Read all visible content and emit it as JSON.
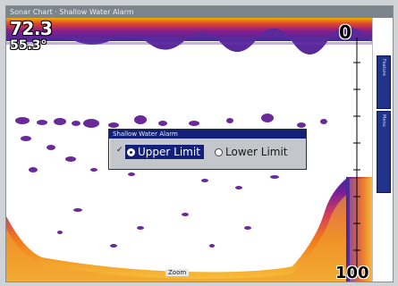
{
  "titlebar": {
    "text": "Sonar Chart · Shallow Water Alarm"
  },
  "readouts": {
    "depth": "72.3",
    "temp": "55.3°"
  },
  "scale": {
    "top": "0",
    "bottom": "100"
  },
  "dialog": {
    "title": "Shallow Water Alarm",
    "options": [
      {
        "label": "Upper Limit",
        "selected": true
      },
      {
        "label": "Lower Limit",
        "selected": false
      }
    ]
  },
  "bottom_label": "Zoom",
  "side_panel": {
    "labels": [
      "Feature",
      "Menu"
    ]
  },
  "colors": {
    "surface": "#6a2a8a",
    "bottom_hot": "#ff8c1a",
    "bottom_mid": "#d23c5a",
    "bottom_cool": "#4a2fb0",
    "dialog_title": "#12207a"
  }
}
